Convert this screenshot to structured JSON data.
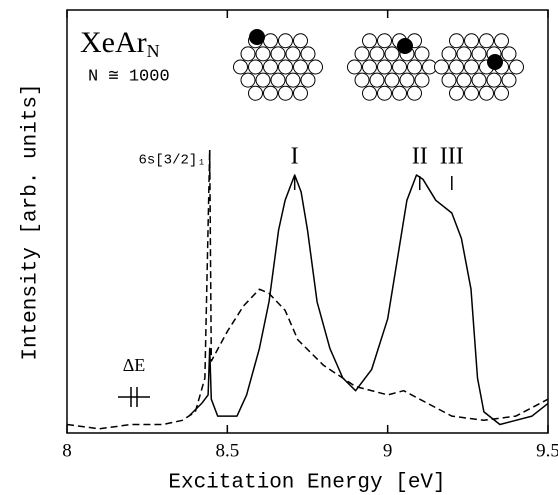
{
  "chart_data": {
    "type": "line",
    "title": "XeAr",
    "title_subscript": "N",
    "subtitle": "N ≅ 1000",
    "xlabel": "Excitation Energy [eV]",
    "ylabel": "Intensity [arb. units]",
    "xlim": [
      8,
      9.5
    ],
    "xticks": [
      8,
      8.5,
      9,
      9.5
    ],
    "ylim": [
      0,
      1
    ],
    "series": [
      {
        "style": "solid",
        "color": "#000000",
        "x": [
          8.38,
          8.42,
          8.44,
          8.445,
          8.45,
          8.47,
          8.5,
          8.53,
          8.56,
          8.6,
          8.63,
          8.66,
          8.68,
          8.7,
          8.71,
          8.73,
          8.75,
          8.78,
          8.82,
          8.86,
          8.9,
          8.95,
          9.0,
          9.03,
          9.06,
          9.09,
          9.11,
          9.15,
          9.2,
          9.23,
          9.26,
          9.28,
          9.3,
          9.35,
          9.4,
          9.45,
          9.5
        ],
        "values": [
          0.04,
          0.07,
          0.09,
          0.2,
          0.08,
          0.04,
          0.04,
          0.04,
          0.09,
          0.2,
          0.31,
          0.48,
          0.55,
          0.59,
          0.61,
          0.57,
          0.48,
          0.31,
          0.2,
          0.13,
          0.1,
          0.15,
          0.27,
          0.41,
          0.55,
          0.61,
          0.6,
          0.55,
          0.52,
          0.46,
          0.34,
          0.13,
          0.05,
          0.02,
          0.03,
          0.04,
          0.07
        ]
      },
      {
        "style": "dashed",
        "color": "#000000",
        "x": [
          8.0,
          8.1,
          8.2,
          8.3,
          8.36,
          8.4,
          8.43,
          8.445,
          8.45,
          8.5,
          8.55,
          8.6,
          8.63,
          8.68,
          8.72,
          8.8,
          8.9,
          9.0,
          9.05,
          9.1,
          9.2,
          9.3,
          9.4,
          9.5
        ],
        "values": [
          0.02,
          0.01,
          0.02,
          0.02,
          0.03,
          0.05,
          0.13,
          0.67,
          0.17,
          0.24,
          0.3,
          0.34,
          0.33,
          0.29,
          0.22,
          0.16,
          0.11,
          0.09,
          0.1,
          0.08,
          0.04,
          0.03,
          0.04,
          0.08
        ]
      }
    ],
    "annotations": [
      {
        "text": "6s[3/2]₁",
        "x": 8.445
      },
      {
        "text": "I",
        "x": 8.71
      },
      {
        "text": "II",
        "x": 9.1
      },
      {
        "text": "III",
        "x": 9.2
      }
    ],
    "resolution_label": "ΔE"
  }
}
